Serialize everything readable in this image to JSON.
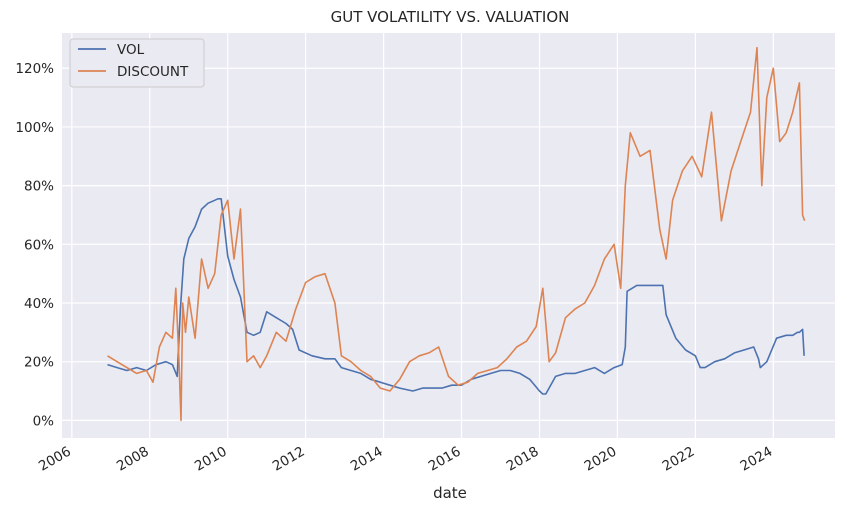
{
  "chart_data": {
    "type": "line",
    "title": "GUT VOLATILITY VS. VALUATION",
    "xlabel": "date",
    "ylabel": "",
    "x_type": "date",
    "xlim": [
      "2005-10-01",
      "2025-08-01"
    ],
    "ylim": [
      -0.06,
      1.32
    ],
    "y_format": "percent",
    "xticks": [
      "2006",
      "2008",
      "2010",
      "2012",
      "2014",
      "2016",
      "2018",
      "2020",
      "2022",
      "2024"
    ],
    "yticks": [
      "0%",
      "20%",
      "40%",
      "60%",
      "80%",
      "100%",
      "120%"
    ],
    "grid": true,
    "background": "#eaeaf2",
    "legend": "top-left",
    "series": [
      {
        "name": "VOL",
        "color": "#4c72b0",
        "x": [
          "2006-12-01",
          "2007-03-01",
          "2007-06-01",
          "2007-09-01",
          "2007-12-01",
          "2008-03-01",
          "2008-06-01",
          "2008-08-01",
          "2008-09-15",
          "2008-10-15",
          "2008-11-15",
          "2009-01-01",
          "2009-03-01",
          "2009-05-01",
          "2009-07-01",
          "2009-09-01",
          "2009-10-01",
          "2009-11-01",
          "2010-01-01",
          "2010-03-01",
          "2010-05-01",
          "2010-07-01",
          "2010-09-01",
          "2010-11-01",
          "2011-01-01",
          "2011-04-01",
          "2011-07-01",
          "2011-09-01",
          "2011-11-01",
          "2012-03-01",
          "2012-07-01",
          "2012-10-01",
          "2012-12-01",
          "2013-03-01",
          "2013-06-01",
          "2013-09-01",
          "2013-12-01",
          "2014-03-01",
          "2014-06-01",
          "2014-10-01",
          "2015-01-01",
          "2015-04-01",
          "2015-07-01",
          "2015-10-01",
          "2016-01-01",
          "2016-04-01",
          "2016-07-01",
          "2016-10-01",
          "2017-01-01",
          "2017-04-01",
          "2017-07-01",
          "2017-10-01",
          "2018-01-01",
          "2018-02-01",
          "2018-03-01",
          "2018-06-01",
          "2018-09-01",
          "2018-12-01",
          "2019-03-01",
          "2019-06-01",
          "2019-09-01",
          "2019-12-01",
          "2020-02-15",
          "2020-03-15",
          "2020-04-01",
          "2020-07-01",
          "2020-10-01",
          "2021-01-01",
          "2021-03-01",
          "2021-04-01",
          "2021-07-01",
          "2021-10-01",
          "2022-01-01",
          "2022-02-15",
          "2022-04-01",
          "2022-07-01",
          "2022-10-01",
          "2023-01-01",
          "2023-04-01",
          "2023-07-01",
          "2023-08-15",
          "2023-09-01",
          "2023-11-01",
          "2024-02-01",
          "2024-05-01",
          "2024-07-01",
          "2024-08-15",
          "2024-09-01",
          "2024-10-01",
          "2024-10-15"
        ],
        "y": [
          0.19,
          0.18,
          0.17,
          0.18,
          0.17,
          0.19,
          0.2,
          0.19,
          0.15,
          0.38,
          0.55,
          0.62,
          0.66,
          0.72,
          0.74,
          0.75,
          0.755,
          0.755,
          0.56,
          0.48,
          0.42,
          0.3,
          0.29,
          0.3,
          0.37,
          0.35,
          0.33,
          0.31,
          0.24,
          0.22,
          0.21,
          0.21,
          0.18,
          0.17,
          0.16,
          0.14,
          0.13,
          0.12,
          0.11,
          0.1,
          0.11,
          0.11,
          0.11,
          0.12,
          0.12,
          0.14,
          0.15,
          0.16,
          0.17,
          0.17,
          0.16,
          0.14,
          0.1,
          0.09,
          0.09,
          0.15,
          0.16,
          0.16,
          0.17,
          0.18,
          0.16,
          0.18,
          0.19,
          0.25,
          0.44,
          0.46,
          0.46,
          0.46,
          0.46,
          0.36,
          0.28,
          0.24,
          0.22,
          0.18,
          0.18,
          0.2,
          0.21,
          0.23,
          0.24,
          0.25,
          0.21,
          0.18,
          0.2,
          0.28,
          0.29,
          0.29,
          0.3,
          0.3,
          0.31,
          0.22
        ]
      },
      {
        "name": "DISCOUNT",
        "color": "#dd8452",
        "x": [
          "2006-12-01",
          "2007-03-01",
          "2007-06-01",
          "2007-09-01",
          "2007-12-01",
          "2008-02-01",
          "2008-04-01",
          "2008-06-01",
          "2008-08-01",
          "2008-09-01",
          "2008-10-01",
          "2008-10-20",
          "2008-11-05",
          "2008-12-01",
          "2009-01-01",
          "2009-03-01",
          "2009-05-01",
          "2009-07-01",
          "2009-09-01",
          "2009-11-01",
          "2010-01-01",
          "2010-03-01",
          "2010-05-01",
          "2010-07-01",
          "2010-09-01",
          "2010-11-01",
          "2011-01-01",
          "2011-04-01",
          "2011-07-01",
          "2011-10-01",
          "2012-01-01",
          "2012-04-01",
          "2012-07-01",
          "2012-10-01",
          "2012-12-01",
          "2013-03-01",
          "2013-06-01",
          "2013-09-01",
          "2013-12-01",
          "2014-03-01",
          "2014-06-01",
          "2014-09-01",
          "2014-12-01",
          "2015-03-01",
          "2015-06-01",
          "2015-09-01",
          "2015-12-01",
          "2016-03-01",
          "2016-06-01",
          "2016-09-01",
          "2016-12-01",
          "2017-03-01",
          "2017-06-01",
          "2017-09-01",
          "2017-12-01",
          "2018-02-01",
          "2018-04-01",
          "2018-06-01",
          "2018-09-01",
          "2018-12-01",
          "2019-03-01",
          "2019-06-01",
          "2019-09-01",
          "2019-12-01",
          "2020-02-01",
          "2020-03-15",
          "2020-05-01",
          "2020-08-01",
          "2020-11-01",
          "2021-02-01",
          "2021-04-01",
          "2021-06-01",
          "2021-09-01",
          "2021-12-01",
          "2022-03-01",
          "2022-06-01",
          "2022-09-01",
          "2022-12-01",
          "2023-03-01",
          "2023-06-01",
          "2023-08-01",
          "2023-09-15",
          "2023-11-01",
          "2024-01-01",
          "2024-03-01",
          "2024-05-01",
          "2024-07-01",
          "2024-09-01",
          "2024-10-01",
          "2024-10-20"
        ],
        "y": [
          0.22,
          0.2,
          0.18,
          0.16,
          0.17,
          0.13,
          0.25,
          0.3,
          0.28,
          0.45,
          0.2,
          0.0,
          0.4,
          0.3,
          0.42,
          0.28,
          0.55,
          0.45,
          0.5,
          0.7,
          0.75,
          0.55,
          0.72,
          0.2,
          0.22,
          0.18,
          0.22,
          0.3,
          0.27,
          0.38,
          0.47,
          0.49,
          0.5,
          0.4,
          0.22,
          0.2,
          0.17,
          0.15,
          0.11,
          0.1,
          0.14,
          0.2,
          0.22,
          0.23,
          0.25,
          0.15,
          0.12,
          0.13,
          0.16,
          0.17,
          0.18,
          0.21,
          0.25,
          0.27,
          0.32,
          0.45,
          0.2,
          0.23,
          0.35,
          0.38,
          0.4,
          0.46,
          0.55,
          0.6,
          0.45,
          0.8,
          0.98,
          0.9,
          0.92,
          0.65,
          0.55,
          0.75,
          0.85,
          0.9,
          0.83,
          1.05,
          0.68,
          0.85,
          0.95,
          1.05,
          1.27,
          0.8,
          1.1,
          1.2,
          0.95,
          0.98,
          1.05,
          1.15,
          0.7,
          0.68
        ]
      }
    ]
  }
}
